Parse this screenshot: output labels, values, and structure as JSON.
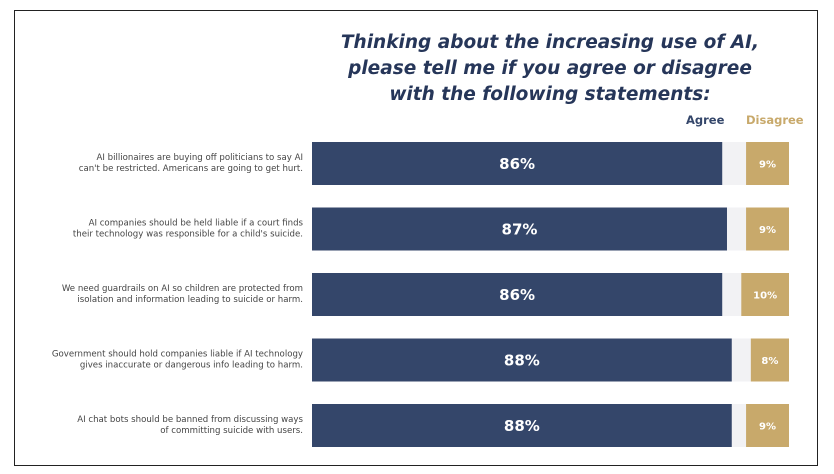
{
  "chart_data": {
    "type": "bar",
    "title_lines": [
      "Thinking about the increasing use of AI,",
      "please tell me if you agree or disagree",
      "with the following statements:"
    ],
    "legend": [
      {
        "name": "Agree",
        "color": "#34466a"
      },
      {
        "name": "Disagree",
        "color": "#c8a96b"
      }
    ],
    "categories": [
      [
        "AI billionaires are buying off politicians to say AI",
        "can't be restricted. Americans are going to get hurt."
      ],
      [
        "AI companies should be held liable if a court finds",
        "their technology was responsible for a child's suicide."
      ],
      [
        "We need guardrails on AI so children are protected from",
        "isolation and information leading to suicide or harm."
      ],
      [
        "Government should hold companies liable if AI technology",
        "gives inaccurate or dangerous info leading to harm."
      ],
      [
        "AI chat bots should be banned from discussing ways",
        "of committing suicide with users."
      ]
    ],
    "series": [
      {
        "name": "Agree",
        "values": [
          86,
          87,
          86,
          88,
          88
        ],
        "labels": [
          "86%",
          "87%",
          "86%",
          "88%",
          "88%"
        ]
      },
      {
        "name": "Disagree",
        "values": [
          9,
          9,
          10,
          8,
          9
        ],
        "labels": [
          "9%",
          "9%",
          "10%",
          "8%",
          "9%"
        ]
      }
    ],
    "colors": {
      "agree": "#34466a",
      "disagree": "#c8a96b",
      "remainder": "#f2f2f4"
    },
    "xlim": [
      0,
      100
    ]
  }
}
